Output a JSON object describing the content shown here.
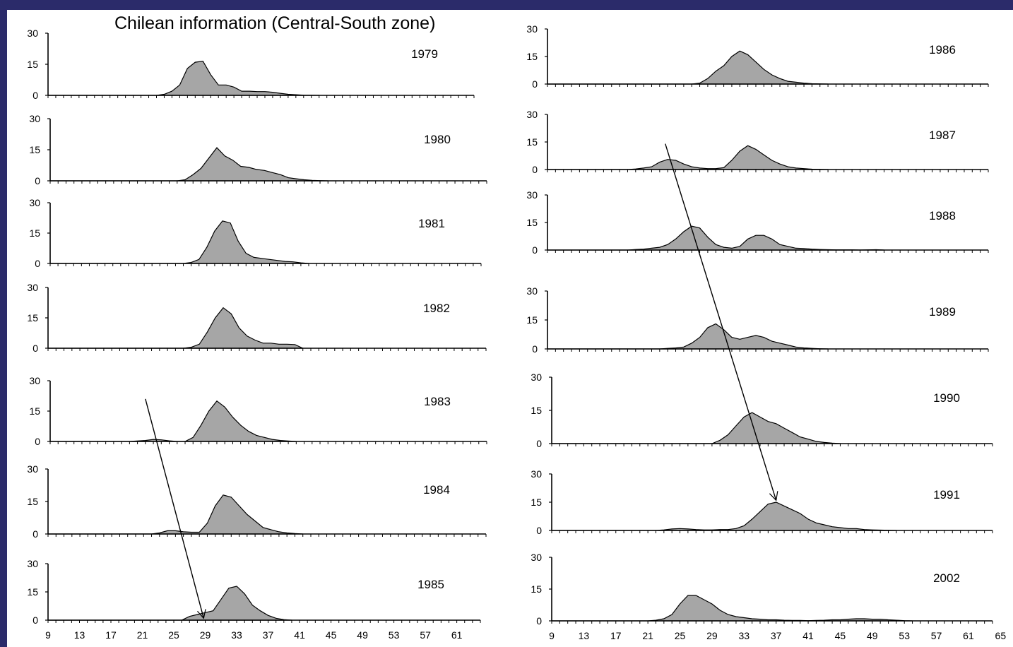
{
  "chart_data": {
    "type": "area",
    "title": "Chilean  information (Central-South zone)",
    "yticks": [
      0,
      15,
      30
    ],
    "ylim": [
      0,
      30
    ],
    "x_ticks_left": [
      9,
      13,
      17,
      21,
      25,
      29,
      33,
      37,
      41,
      45,
      49,
      53,
      57,
      61
    ],
    "x_ticks_right": [
      9,
      13,
      17,
      21,
      25,
      29,
      33,
      37,
      41,
      45,
      49,
      53,
      57,
      61,
      65
    ],
    "colors": {
      "fill": "#a6a6a6",
      "stroke": "#000000",
      "arrow": "#000000"
    },
    "panels": [
      {
        "year": "1979",
        "column": "left",
        "x": [
          9,
          23,
          24,
          25,
          26,
          27,
          28,
          29,
          30,
          31,
          32,
          33,
          34,
          35,
          36,
          37,
          38,
          39,
          40,
          41,
          42,
          44
        ],
        "values": [
          0,
          0,
          0.5,
          2,
          5,
          13,
          16,
          16.5,
          10,
          5,
          5,
          4,
          2,
          2,
          1.8,
          1.8,
          1.5,
          1,
          0.5,
          0.3,
          0.1,
          0
        ]
      },
      {
        "year": "1980",
        "column": "left",
        "x": [
          9,
          25,
          26,
          27,
          28,
          29,
          30,
          31,
          32,
          33,
          34,
          35,
          36,
          37,
          38,
          39,
          40,
          41,
          42,
          43,
          44
        ],
        "values": [
          0,
          0,
          0.5,
          3,
          6,
          11,
          16,
          12,
          10,
          7,
          6.5,
          5.5,
          5,
          4,
          3,
          1.5,
          1,
          0.5,
          0.2,
          0.1,
          0
        ]
      },
      {
        "year": "1981",
        "column": "left",
        "x": [
          9,
          26,
          27,
          28,
          29,
          30,
          31,
          32,
          33,
          34,
          35,
          36,
          37,
          38,
          39,
          40,
          41,
          42
        ],
        "values": [
          0,
          0,
          0.5,
          2,
          8,
          16,
          21,
          20,
          11,
          5,
          3,
          2.5,
          2,
          1.5,
          1,
          0.8,
          0.3,
          0
        ]
      },
      {
        "year": "1982",
        "column": "left",
        "x": [
          9,
          26,
          27,
          28,
          29,
          30,
          31,
          32,
          33,
          34,
          35,
          36,
          37,
          38,
          39,
          40,
          41
        ],
        "values": [
          0,
          0,
          0.5,
          2,
          8,
          15,
          20,
          17,
          10,
          6,
          4,
          2.5,
          2.5,
          2,
          2,
          1.8,
          0
        ]
      },
      {
        "year": "1983",
        "column": "left",
        "x": [
          9,
          19,
          21,
          22,
          23,
          24,
          25,
          26,
          27,
          28,
          29,
          30,
          31,
          32,
          33,
          34,
          35,
          36,
          37,
          38,
          39,
          40
        ],
        "values": [
          0,
          0,
          0.5,
          1,
          0.8,
          0.3,
          0,
          0,
          2,
          8,
          15,
          20,
          17,
          12,
          8,
          5,
          3,
          2,
          1,
          0.5,
          0.2,
          0
        ]
      },
      {
        "year": "1984",
        "column": "left",
        "x": [
          9,
          22,
          23,
          24,
          25,
          26,
          27,
          28,
          29,
          30,
          31,
          32,
          33,
          34,
          35,
          36,
          37,
          38,
          39,
          40,
          41
        ],
        "values": [
          0,
          0,
          0.5,
          1.5,
          1.5,
          1,
          0.8,
          0.8,
          5,
          13,
          18,
          17,
          13,
          9,
          6,
          3,
          2,
          1,
          0.5,
          0.2,
          0
        ]
      },
      {
        "year": "1985",
        "column": "left",
        "x": [
          9,
          26,
          27,
          28,
          29,
          30,
          31,
          32,
          33,
          34,
          35,
          36,
          37,
          38,
          39,
          40
        ],
        "values": [
          0,
          0,
          2,
          3,
          4,
          5,
          11,
          17,
          18,
          14,
          8,
          5,
          2.5,
          1,
          0.3,
          0
        ]
      },
      {
        "year": "1986",
        "column": "right",
        "x": [
          9,
          27,
          28,
          29,
          30,
          31,
          32,
          33,
          34,
          35,
          36,
          37,
          38,
          39,
          40,
          41,
          42,
          43,
          44
        ],
        "values": [
          0,
          0,
          0.5,
          3,
          7,
          10,
          15,
          18,
          16,
          12,
          8,
          5,
          3,
          1.5,
          1,
          0.5,
          0.2,
          0.1,
          0
        ]
      },
      {
        "year": "1987",
        "column": "right",
        "x": [
          9,
          19,
          20,
          21,
          22,
          23,
          24,
          25,
          26,
          27,
          28,
          29,
          30,
          31,
          32,
          33,
          34,
          35,
          36,
          37,
          38,
          39,
          40,
          41,
          42,
          43,
          44
        ],
        "values": [
          0,
          0,
          0.3,
          0.8,
          1.5,
          4,
          5.5,
          5,
          3,
          1.5,
          0.8,
          0.5,
          0.5,
          1,
          5,
          10,
          13,
          11,
          8,
          5,
          3,
          1.5,
          0.8,
          0.5,
          0.2,
          0.1,
          0
        ]
      },
      {
        "year": "1988",
        "column": "right",
        "x": [
          9,
          19,
          20,
          21,
          22,
          23,
          24,
          25,
          26,
          27,
          28,
          29,
          30,
          31,
          32,
          33,
          34,
          35,
          36,
          37,
          38,
          39,
          40,
          41,
          42,
          43,
          44,
          45,
          46,
          47,
          48,
          50,
          51
        ],
        "values": [
          0,
          0,
          0.3,
          0.5,
          1,
          1.5,
          3,
          6,
          10,
          13,
          12,
          7,
          3,
          1.5,
          1,
          2,
          6,
          8,
          8,
          6,
          3,
          2,
          1,
          0.8,
          0.5,
          0.3,
          0.2,
          0.1,
          0.1,
          0.1,
          0,
          0.2,
          0
        ]
      },
      {
        "year": "1989",
        "column": "right",
        "x": [
          9,
          23,
          24,
          25,
          26,
          27,
          28,
          29,
          30,
          31,
          32,
          33,
          34,
          35,
          36,
          37,
          38,
          39,
          40,
          41,
          42,
          43,
          44
        ],
        "values": [
          0,
          0,
          0.3,
          0.5,
          1,
          3,
          6,
          11,
          13,
          10,
          6,
          5,
          6,
          7,
          6,
          4,
          3,
          2,
          1,
          0.5,
          0.3,
          0.1,
          0
        ]
      },
      {
        "year": "1990",
        "column": "right",
        "x": [
          9,
          29,
          30,
          31,
          32,
          33,
          34,
          35,
          36,
          37,
          38,
          39,
          40,
          41,
          42,
          43,
          44,
          45
        ],
        "values": [
          0,
          0,
          1.5,
          4,
          8,
          12,
          14,
          12,
          10,
          9,
          7,
          5,
          3,
          2,
          1,
          0.5,
          0.2,
          0
        ]
      },
      {
        "year": "1991",
        "column": "right",
        "x": [
          9,
          22,
          23,
          24,
          25,
          26,
          27,
          28,
          29,
          30,
          31,
          32,
          33,
          34,
          35,
          36,
          37,
          38,
          39,
          40,
          41,
          42,
          43,
          44,
          45,
          46,
          47,
          48,
          49,
          50,
          51,
          52
        ],
        "values": [
          0,
          0,
          0.3,
          0.8,
          1,
          0.8,
          0.5,
          0.3,
          0.3,
          0.5,
          0.5,
          1,
          2.5,
          6,
          10,
          14,
          15,
          13,
          11,
          9,
          6,
          4,
          3,
          2,
          1.5,
          1,
          1,
          0.5,
          0.3,
          0.2,
          0.1,
          0
        ]
      },
      {
        "year": "2002",
        "column": "right",
        "x": [
          9,
          21,
          22,
          23,
          24,
          25,
          26,
          27,
          28,
          29,
          30,
          31,
          32,
          33,
          34,
          35,
          36,
          37,
          38,
          39,
          40,
          41,
          42,
          43,
          44,
          45,
          46,
          47,
          48,
          49,
          50,
          51,
          52,
          53,
          54
        ],
        "values": [
          0,
          0,
          0.3,
          1,
          3,
          8,
          12,
          12,
          10,
          8,
          5,
          3,
          2,
          1.5,
          1,
          0.8,
          0.5,
          0.5,
          0.3,
          0.2,
          0.2,
          0.1,
          0.2,
          0.3,
          0.5,
          0.5,
          0.8,
          1,
          1,
          0.8,
          0.8,
          0.5,
          0.3,
          0.1,
          0
        ]
      }
    ],
    "arrows": [
      {
        "column": "left",
        "from": {
          "panel": "1983",
          "x": 21.0,
          "y": 21
        },
        "to": {
          "panel": "1985",
          "x": 28.8,
          "y": 1
        }
      },
      {
        "column": "right",
        "from": {
          "panel": "1987",
          "x": 23.7,
          "y": 14
        },
        "to": {
          "panel": "1991",
          "x": 37.0,
          "y": 16
        }
      }
    ]
  }
}
